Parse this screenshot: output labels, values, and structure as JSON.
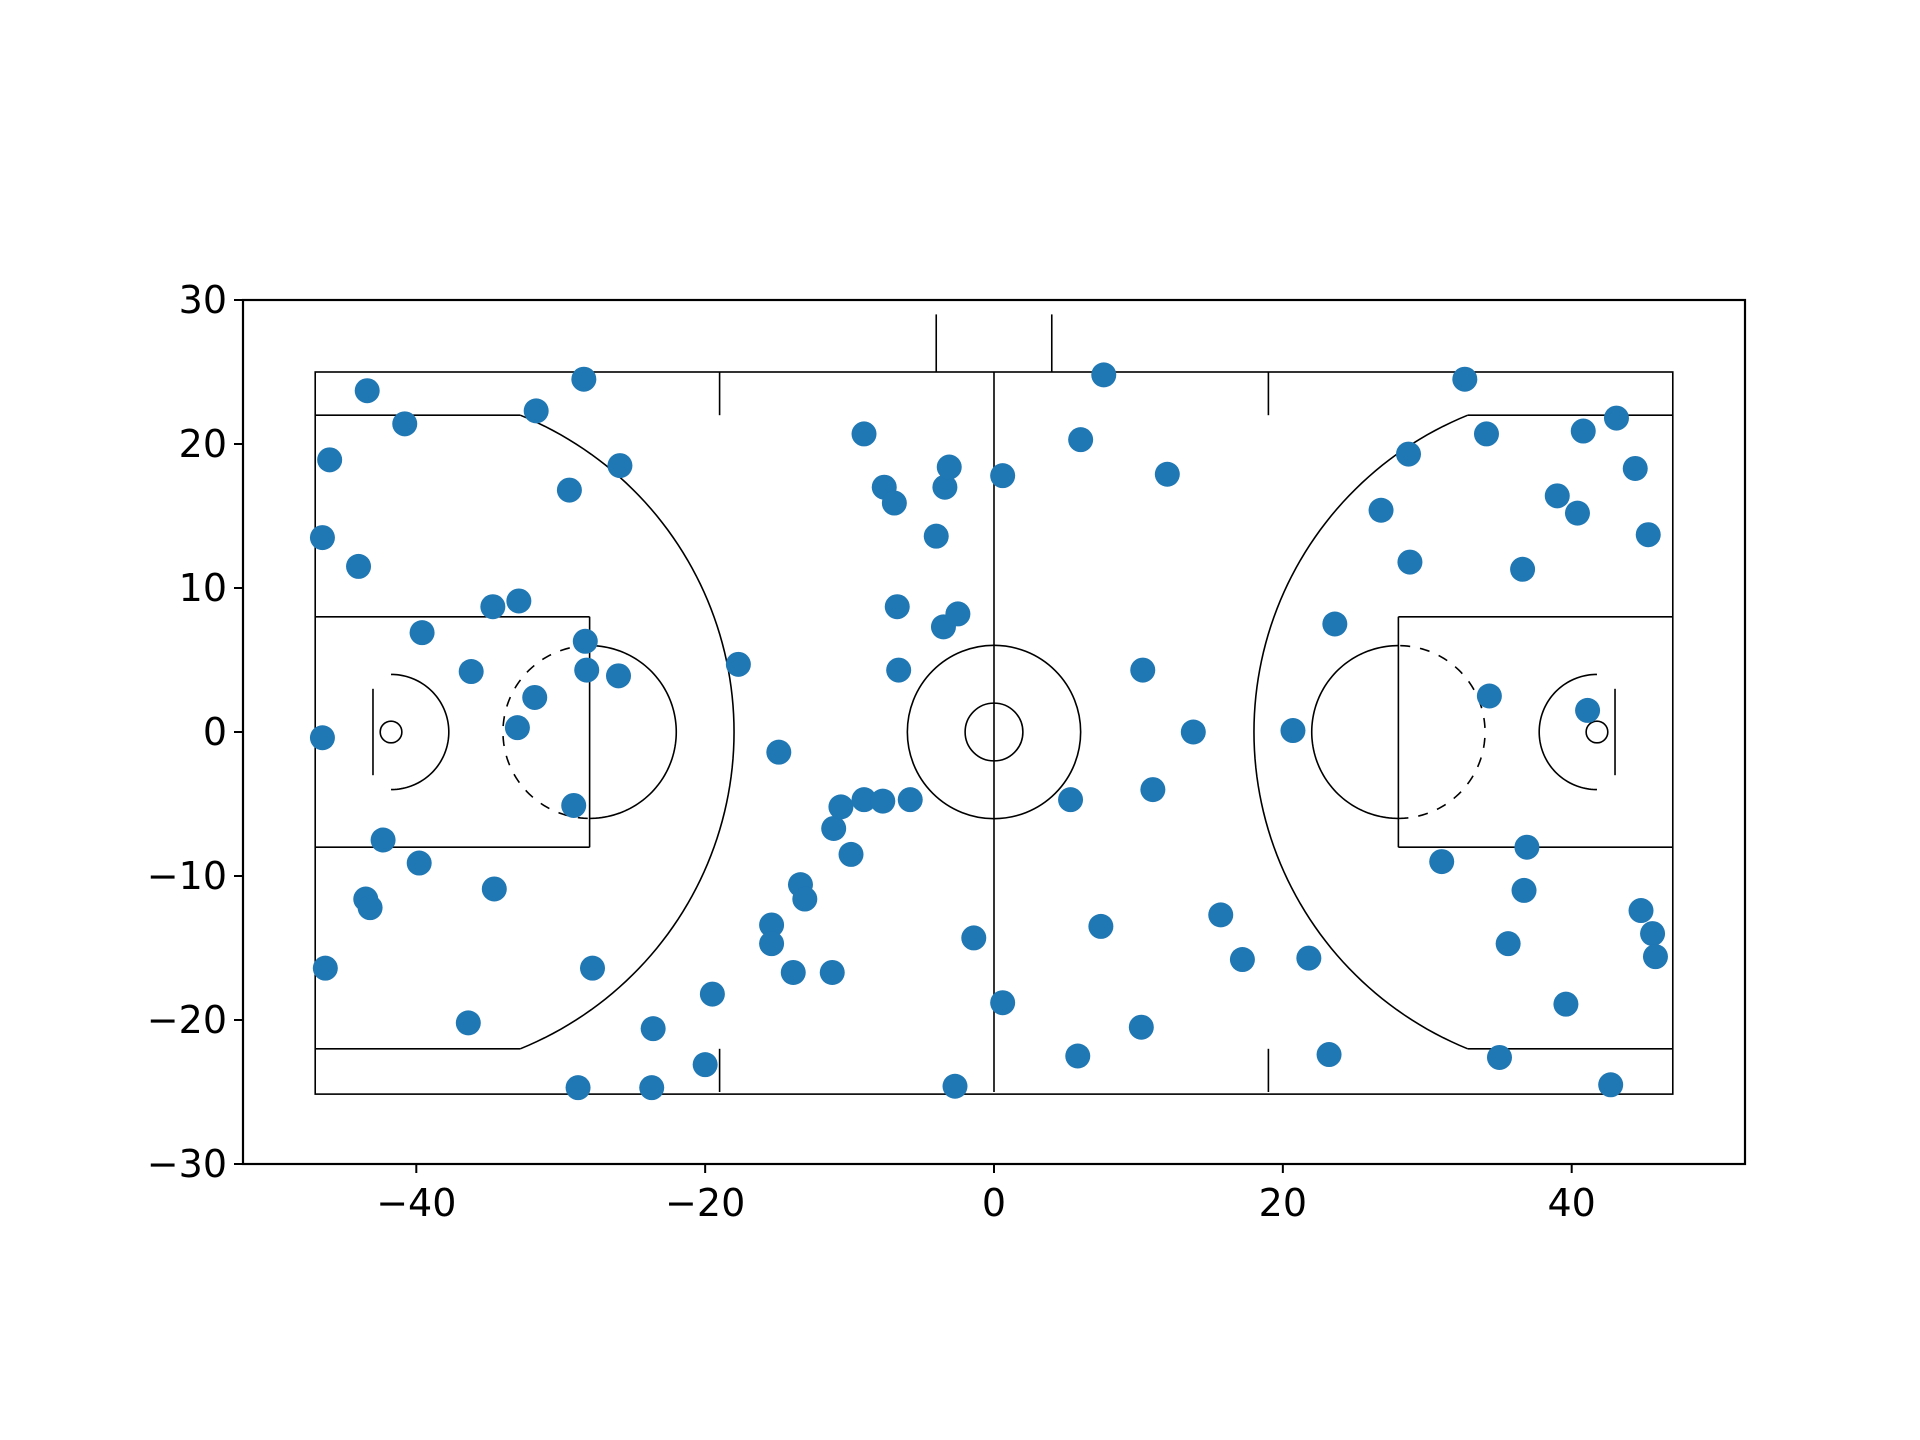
{
  "chart_data": {
    "type": "scatter",
    "title": "",
    "xlabel": "",
    "ylabel": "",
    "xlim": [
      -52,
      52
    ],
    "ylim": [
      -30,
      30
    ],
    "grid": false,
    "legend": "none",
    "aspect": "equal",
    "marker_color": "#1f77b4",
    "line_color": "#000000",
    "background": "#ffffff",
    "xticks": [
      {
        "value": -40,
        "label": "−40"
      },
      {
        "value": -20,
        "label": "−20"
      },
      {
        "value": 0,
        "label": "0"
      },
      {
        "value": 20,
        "label": "20"
      },
      {
        "value": 40,
        "label": "40"
      }
    ],
    "yticks": [
      {
        "value": -30,
        "label": "−30"
      },
      {
        "value": -20,
        "label": "−20"
      },
      {
        "value": -10,
        "label": "−10"
      },
      {
        "value": 0,
        "label": "0"
      },
      {
        "value": 10,
        "label": "10"
      },
      {
        "value": 20,
        "label": "20"
      },
      {
        "value": 30,
        "label": "30"
      }
    ],
    "court": {
      "length": 94,
      "width": 50,
      "hoop_offset": 5.25,
      "hoop_radius": 0.75,
      "backboard_offset": 4,
      "backboard_half_width": 3,
      "key_length": 19,
      "key_half_width": 8,
      "free_throw_radius": 6,
      "restricted_radius": 4,
      "three_point_radius": 23.75,
      "corner_three_y": 22,
      "center_circle_outer": 6,
      "center_circle_inner": 2,
      "hash_from_baseline": 28,
      "hash_length": 3,
      "substitution_box_x": 4,
      "substitution_box_extend": 4
    },
    "series": [
      {
        "name": "shots",
        "x": [
          -46.5,
          -46.0,
          -46.3,
          -46.5,
          -44.0,
          -43.5,
          -42.3,
          -43.2,
          -43.4,
          -39.6,
          -40.8,
          -39.8,
          -36.2,
          -36.4,
          -34.6,
          -34.7,
          -33.0,
          -32.9,
          -31.8,
          -31.7,
          -29.4,
          -29.1,
          -28.3,
          -28.2,
          -28.4,
          -27.8,
          -26.0,
          -25.9,
          -23.6,
          -23.7,
          -28.8,
          -20.0,
          -19.5,
          -17.7,
          -15.4,
          -15.4,
          -14.9,
          -13.9,
          -13.4,
          -13.1,
          -11.2,
          -11.1,
          -10.6,
          -9.9,
          -9.0,
          -9.0,
          -7.7,
          -7.6,
          -6.9,
          -6.7,
          -6.6,
          -5.8,
          -4.0,
          -3.5,
          -3.4,
          -3.1,
          -2.5,
          -1.4,
          -2.7,
          0.6,
          0.6,
          5.3,
          5.8,
          6.0,
          7.4,
          7.6,
          10.2,
          10.3,
          11.0,
          12.0,
          13.8,
          15.7,
          17.2,
          20.7,
          21.8,
          23.2,
          23.6,
          26.8,
          28.7,
          28.8,
          31.0,
          32.6,
          34.1,
          34.3,
          35.0,
          35.6,
          36.6,
          36.7,
          36.9,
          39.0,
          39.6,
          40.4,
          40.8,
          41.1,
          42.7,
          43.1,
          44.4,
          44.8,
          45.3,
          45.6,
          45.8
        ],
        "y": [
          13.5,
          18.9,
          -16.4,
          -0.4,
          11.5,
          -11.6,
          -7.5,
          -12.2,
          23.7,
          6.9,
          21.4,
          -9.1,
          4.2,
          -20.2,
          -10.9,
          8.7,
          0.3,
          9.1,
          2.4,
          22.3,
          16.8,
          -5.1,
          6.3,
          4.3,
          24.5,
          -16.4,
          3.9,
          18.5,
          -20.6,
          -24.7,
          -24.7,
          -23.1,
          -18.2,
          4.7,
          -13.4,
          -14.7,
          -1.4,
          -16.7,
          -10.6,
          -11.6,
          -16.7,
          -6.7,
          -5.2,
          -8.5,
          20.7,
          -4.7,
          -4.8,
          17.0,
          15.9,
          8.7,
          4.3,
          -4.7,
          13.6,
          7.3,
          17.0,
          18.4,
          8.2,
          -14.3,
          -24.6,
          17.8,
          -18.8,
          -4.7,
          -22.5,
          20.3,
          -13.5,
          24.8,
          -20.5,
          4.3,
          -4.0,
          17.9,
          0.0,
          -12.7,
          -15.8,
          0.1,
          -15.7,
          -22.4,
          7.5,
          15.4,
          19.3,
          11.8,
          -9.0,
          24.5,
          20.7,
          2.5,
          -22.6,
          -14.7,
          11.3,
          -11.0,
          -8.0,
          16.4,
          -18.9,
          15.2,
          20.9,
          1.5,
          -24.5,
          21.8,
          18.3,
          -12.4,
          13.7,
          -14.0,
          -15.6
        ]
      }
    ]
  }
}
